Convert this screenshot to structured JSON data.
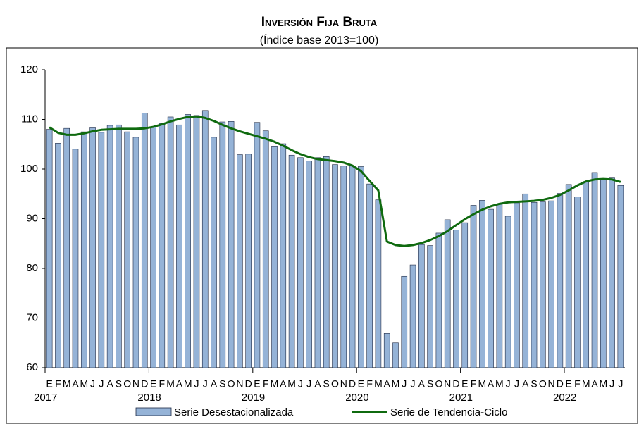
{
  "chart_data": {
    "type": "bar_line",
    "title": "Inversión Fija Bruta",
    "subtitle": "(Índice base 2013=100)",
    "categories": [
      "E",
      "F",
      "M",
      "A",
      "M",
      "J",
      "J",
      "A",
      "S",
      "O",
      "N",
      "D",
      "E",
      "F",
      "M",
      "A",
      "M",
      "J",
      "J",
      "A",
      "S",
      "O",
      "N",
      "D",
      "E",
      "F",
      "M",
      "A",
      "M",
      "J",
      "J",
      "A",
      "S",
      "O",
      "N",
      "D",
      "E",
      "F",
      "M",
      "A",
      "M",
      "J",
      "J",
      "A",
      "S",
      "O",
      "N",
      "D",
      "E",
      "F",
      "M",
      "A",
      "M",
      "J",
      "J",
      "A",
      "S",
      "O",
      "N",
      "D",
      "E",
      "F",
      "M",
      "A",
      "M",
      "J",
      "J"
    ],
    "years": [
      "2017",
      "2018",
      "2019",
      "2020",
      "2021",
      "2022"
    ],
    "series": [
      {
        "name": "Serie Desestacionalizada",
        "type": "bar",
        "color": "#95b3d7",
        "values": [
          108,
          105.2,
          108.2,
          104,
          107.5,
          108.3,
          107.4,
          108.8,
          108.9,
          107.5,
          106.4,
          111.3,
          108.5,
          109.2,
          110.5,
          108.9,
          111,
          110.8,
          111.8,
          106.4,
          109.5,
          109.6,
          102.9,
          103,
          109.4,
          107.7,
          104.5,
          105.1,
          102.8,
          102.3,
          101.6,
          102.3,
          102.5,
          100.9,
          100.6,
          100.6,
          100.5,
          97,
          93.8,
          66.9,
          65,
          78.4,
          80.7,
          84.8,
          84.6,
          87.1,
          89.8,
          87.7,
          89.2,
          92.7,
          93.7,
          91.9,
          93,
          90.5,
          93.2,
          95,
          93.3,
          93.4,
          93.6,
          95.1,
          96.9,
          94.4,
          97.5,
          99.3,
          98,
          98.2,
          96.7
        ]
      },
      {
        "name": "Serie de Tendencia-Ciclo",
        "type": "line",
        "color": "#0f6a0f",
        "values": [
          108.4,
          107.3,
          106.9,
          106.9,
          107.2,
          107.6,
          107.9,
          108,
          108.1,
          108.1,
          108.1,
          108.2,
          108.5,
          109,
          109.6,
          110.1,
          110.5,
          110.6,
          110.3,
          109.7,
          108.9,
          108.2,
          107.6,
          107.1,
          106.6,
          106.1,
          105.5,
          104.7,
          103.8,
          103,
          102.4,
          102,
          101.8,
          101.6,
          101.3,
          100.7,
          99.6,
          97.6,
          95.7,
          85.4,
          84.7,
          84.5,
          84.7,
          85.1,
          85.7,
          86.5,
          87.5,
          88.7,
          89.9,
          90.9,
          91.8,
          92.5,
          93,
          93.3,
          93.4,
          93.5,
          93.6,
          93.8,
          94.2,
          94.8,
          95.7,
          96.7,
          97.5,
          97.9,
          98,
          97.9,
          97.4
        ]
      }
    ],
    "ylim": [
      60,
      120
    ],
    "yticks": [
      60,
      70,
      80,
      90,
      100,
      110,
      120
    ],
    "grid": false
  }
}
